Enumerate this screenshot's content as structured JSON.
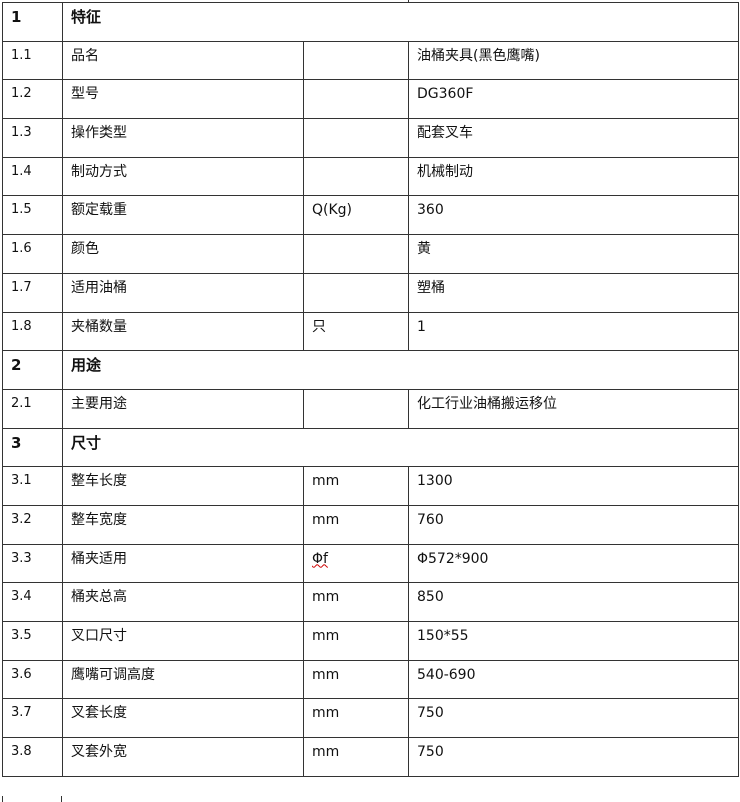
{
  "rows": [
    {
      "type": "section",
      "num": "1",
      "name": "特征"
    },
    {
      "num": "1.1",
      "name": "品名",
      "unit": "",
      "value": "油桶夹具(黑色鹰嘴)"
    },
    {
      "num": "1.2",
      "name": "型号",
      "unit": "",
      "value": "DG360F"
    },
    {
      "num": "1.3",
      "name": "操作类型",
      "unit": "",
      "value": "配套叉车"
    },
    {
      "num": "1.4",
      "name": "制动方式",
      "unit": "",
      "value": "机械制动"
    },
    {
      "num": "1.5",
      "name": "额定载重",
      "unit": "Q(Kg)",
      "value": "360"
    },
    {
      "num": "1.6",
      "name": "颜色",
      "unit": "",
      "value": "黄"
    },
    {
      "num": "1.7",
      "name": "适用油桶",
      "unit": "",
      "value": "塑桶"
    },
    {
      "num": "1.8",
      "name": "夹桶数量",
      "unit": "只",
      "value": "1"
    },
    {
      "type": "section",
      "num": "2",
      "name": "用途"
    },
    {
      "num": "2.1",
      "name": "主要用途",
      "unit": "",
      "value": "化工行业油桶搬运移位"
    },
    {
      "type": "section",
      "num": "3",
      "name": "尺寸"
    },
    {
      "num": "3.1",
      "name": "整车长度",
      "unit": "mm",
      "value": "1300"
    },
    {
      "num": "3.2",
      "name": "整车宽度",
      "unit": "mm",
      "value": "760"
    },
    {
      "num": "3.3",
      "name": "桶夹适用",
      "unit": "Φf",
      "value": "Φ572*900"
    },
    {
      "num": "3.4",
      "name": "桶夹总高",
      "unit": "mm",
      "value": "850"
    },
    {
      "num": "3.5",
      "name": "叉口尺寸",
      "unit": "mm",
      "value": "150*55"
    },
    {
      "num": "3.6",
      "name": "鹰嘴可调高度",
      "unit": "mm",
      "value": "540-690"
    },
    {
      "num": "3.7",
      "name": "叉套长度",
      "unit": "mm",
      "value": "750"
    },
    {
      "num": "3.8",
      "name": "叉套外宽",
      "unit": "mm",
      "value": "750"
    }
  ]
}
